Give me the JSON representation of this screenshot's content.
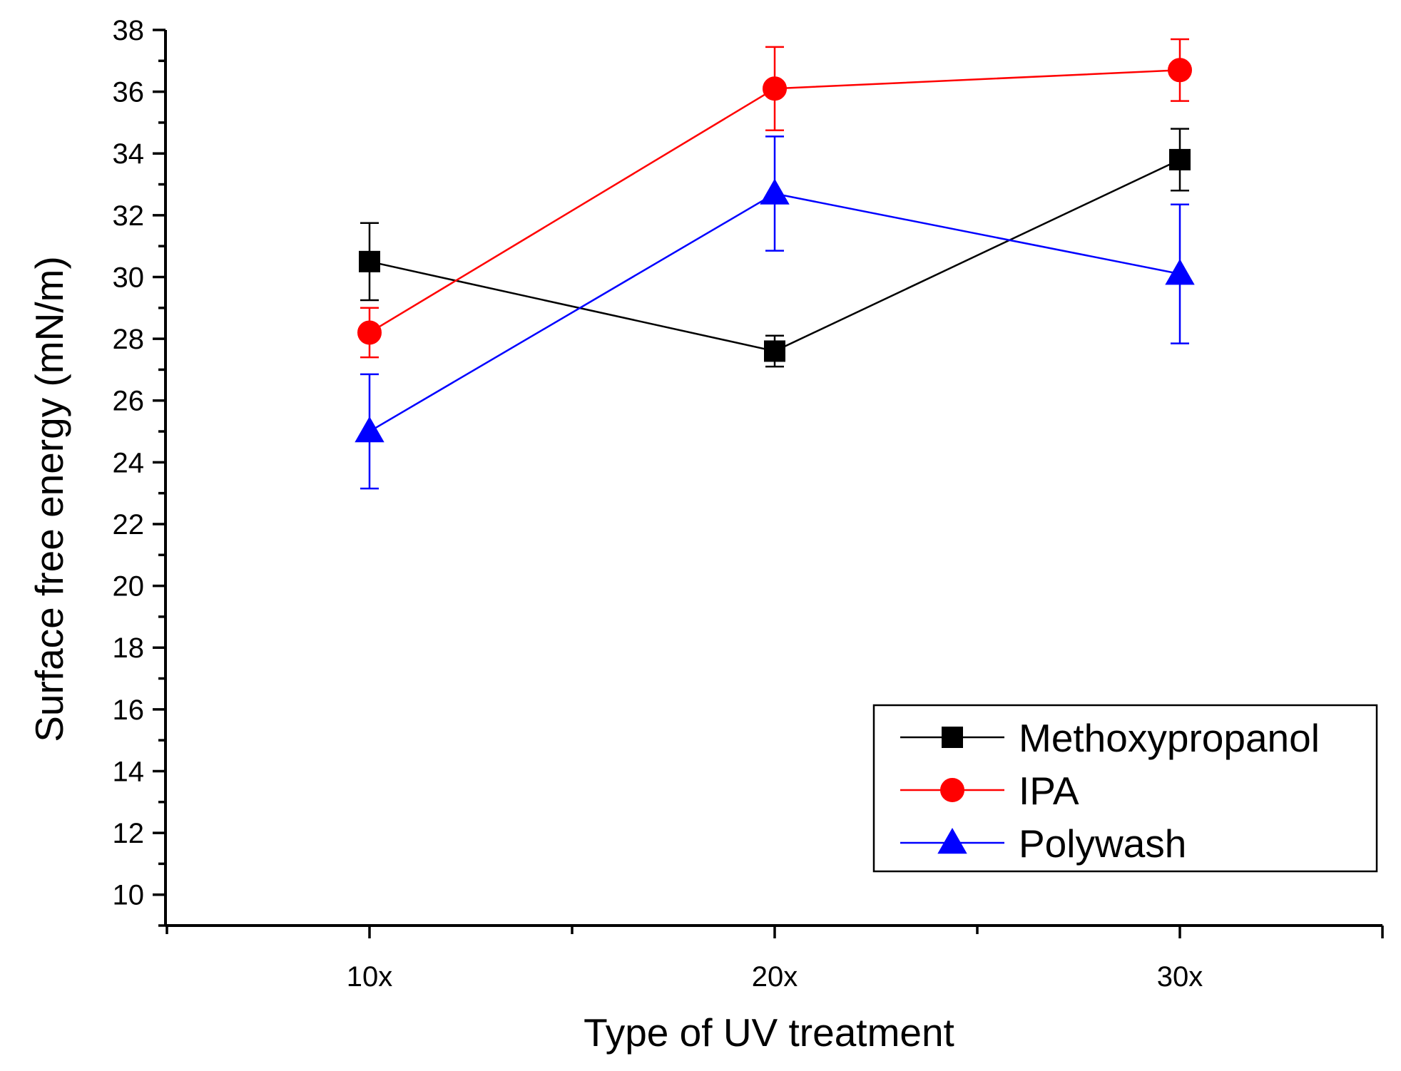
{
  "chart_data": {
    "type": "line",
    "title": "",
    "xlabel": "Type of UV treatment",
    "ylabel": "Surface free energy (mN/m)",
    "categories": [
      "10x",
      "20x",
      "30x"
    ],
    "ylim": [
      9,
      38
    ],
    "yticks": [
      10,
      12,
      14,
      16,
      18,
      20,
      22,
      24,
      26,
      28,
      30,
      32,
      34,
      36,
      38
    ],
    "legend_position": "bottom-right",
    "grid": false,
    "series": [
      {
        "name": "Methoxypropanol",
        "color": "#000000",
        "marker": "square",
        "values": [
          30.5,
          27.6,
          33.8
        ],
        "errors": [
          1.25,
          0.5,
          1.0
        ]
      },
      {
        "name": "IPA",
        "color": "#ff0000",
        "marker": "circle",
        "values": [
          28.2,
          36.1,
          36.7
        ],
        "errors": [
          0.8,
          1.35,
          1.0
        ]
      },
      {
        "name": "Polywash",
        "color": "#0000ff",
        "marker": "triangle",
        "values": [
          25.0,
          32.7,
          30.1
        ],
        "errors": [
          1.85,
          1.85,
          2.25
        ]
      }
    ]
  }
}
